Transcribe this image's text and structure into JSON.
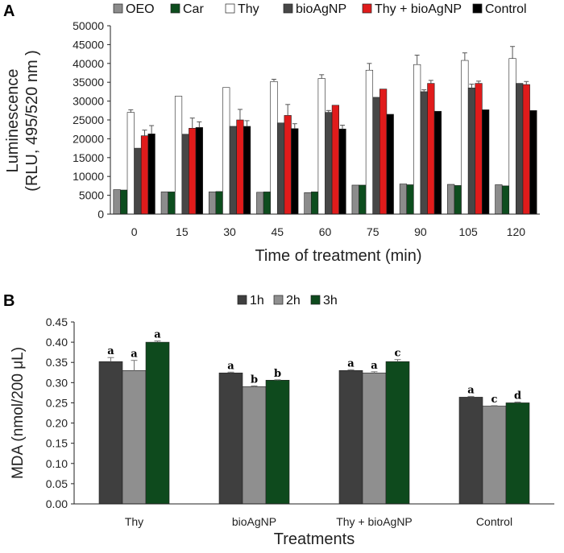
{
  "colors": {
    "OEO": "#8c8c8c",
    "Car": "#0d4d1e",
    "Thy": "#ffffff",
    "bioAgNP": "#474747",
    "Thy + bioAgNP": "#e01b1b",
    "Control": "#000000",
    "1h": "#3f3f3f",
    "2h": "#8f8f8f",
    "3h": "#0e4a1d"
  },
  "chart_data": [
    {
      "panel": "A",
      "type": "bar",
      "title": "",
      "xlabel": "Time of treatment (min)",
      "ylabel_line1": "Luminescence",
      "ylabel_line2": "(RLU, 495/520 nm )",
      "ylim": [
        0,
        50000
      ],
      "yticks": [
        "0",
        "5000",
        "10000",
        "15000",
        "20000",
        "25000",
        "30000",
        "35000",
        "40000",
        "45000",
        "50000"
      ],
      "categories": [
        "0",
        "15",
        "30",
        "45",
        "60",
        "75",
        "90",
        "105",
        "120"
      ],
      "legend_position": "top",
      "series": [
        {
          "name": "OEO",
          "values": [
            6500,
            5900,
            5900,
            5800,
            5700,
            7700,
            8000,
            7900,
            7800
          ],
          "errors": [
            0,
            0,
            0,
            0,
            0,
            0,
            0,
            0,
            0
          ]
        },
        {
          "name": "Car",
          "values": [
            6400,
            5900,
            6000,
            5900,
            5900,
            7700,
            7800,
            7600,
            7500
          ],
          "errors": [
            0,
            0,
            0,
            0,
            0,
            0,
            0,
            0,
            0
          ]
        },
        {
          "name": "Thy",
          "values": [
            27000,
            31300,
            33600,
            35200,
            36000,
            38200,
            39700,
            40800,
            41300
          ],
          "errors": [
            700,
            0,
            0,
            600,
            1000,
            1800,
            2500,
            2000,
            3200
          ]
        },
        {
          "name": "bioAgNP",
          "values": [
            17500,
            21200,
            23300,
            24200,
            27000,
            31000,
            32500,
            33500,
            34700
          ],
          "errors": [
            0,
            0,
            0,
            0,
            500,
            0,
            500,
            1000,
            0
          ]
        },
        {
          "name": "Thy + bioAgNP",
          "values": [
            20800,
            22800,
            25000,
            26200,
            28900,
            33200,
            34700,
            34700,
            34400
          ],
          "errors": [
            1500,
            2700,
            2800,
            2900,
            0,
            0,
            800,
            600,
            800
          ]
        },
        {
          "name": "Control",
          "values": [
            21300,
            23000,
            23300,
            22700,
            22600,
            26500,
            27300,
            27700,
            27500
          ],
          "errors": [
            2200,
            1500,
            1500,
            1300,
            1000,
            0,
            0,
            0,
            0
          ]
        }
      ]
    },
    {
      "panel": "B",
      "type": "bar",
      "title": "",
      "xlabel": "Treatments",
      "ylabel": "MDA (nmol/200 μL)",
      "ylim": [
        0,
        0.45
      ],
      "yticks": [
        "0.00",
        "0.05",
        "0.10",
        "0.15",
        "0.20",
        "0.25",
        "0.30",
        "0.35",
        "0.40",
        "0.45"
      ],
      "categories": [
        "Thy",
        "bioAgNP",
        "Thy + bioAgNP",
        "Control"
      ],
      "legend_position": "top",
      "series": [
        {
          "name": "1h",
          "values": [
            0.352,
            0.324,
            0.33,
            0.264
          ],
          "errors": [
            0.01,
            0.002,
            0.002,
            0.002
          ],
          "letters": [
            "a",
            "a",
            "a",
            "a"
          ]
        },
        {
          "name": "2h",
          "values": [
            0.33,
            0.29,
            0.324,
            0.242
          ],
          "errors": [
            0.025,
            0.002,
            0.003,
            0.001
          ],
          "letters": [
            "a",
            "b",
            "a",
            "c"
          ]
        },
        {
          "name": "3h",
          "values": [
            0.4,
            0.306,
            0.352,
            0.25
          ],
          "errors": [
            0.003,
            0.001,
            0.005,
            0.002
          ],
          "letters": [
            "a",
            "b",
            "c",
            "d"
          ]
        }
      ]
    }
  ]
}
